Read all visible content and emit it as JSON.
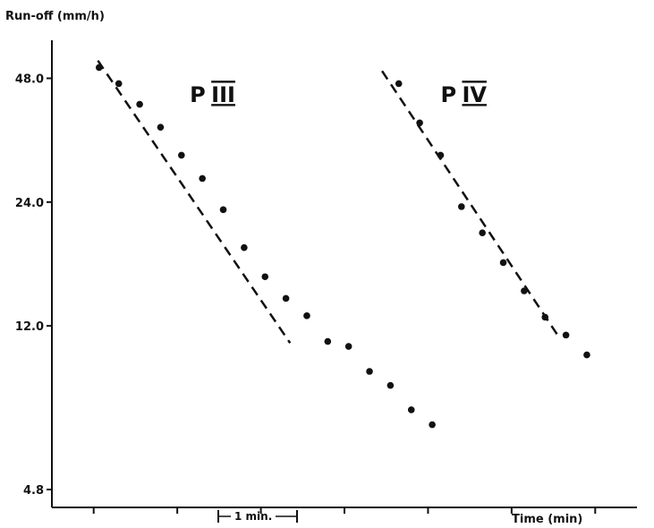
{
  "chart_data": {
    "type": "scatter",
    "title": "",
    "ylabel": "Run-off (mm/h)",
    "xlabel": "Time (min)",
    "y_scale": "log",
    "ylim": [
      4.8,
      60
    ],
    "xlim": [
      0,
      14
    ],
    "y_ticks": [
      "48.0",
      "24.0",
      "12.0",
      "4.8"
    ],
    "x_ticks": [
      1,
      3,
      5,
      7,
      9,
      11,
      13
    ],
    "scale_annotation": "1 min.",
    "series": [
      {
        "name": "P III",
        "label_left": "P",
        "label_numeral": "III",
        "points": [
          {
            "x": 1.13,
            "y": 51.0
          },
          {
            "x": 1.6,
            "y": 46.6
          },
          {
            "x": 2.1,
            "y": 41.5
          },
          {
            "x": 2.6,
            "y": 36.5
          },
          {
            "x": 3.1,
            "y": 31.2
          },
          {
            "x": 3.6,
            "y": 27.4
          },
          {
            "x": 4.1,
            "y": 23.0
          },
          {
            "x": 4.6,
            "y": 18.6
          },
          {
            "x": 5.1,
            "y": 15.8
          },
          {
            "x": 5.6,
            "y": 14.0
          },
          {
            "x": 6.1,
            "y": 12.7
          },
          {
            "x": 6.6,
            "y": 11.0
          },
          {
            "x": 7.1,
            "y": 10.7
          },
          {
            "x": 7.6,
            "y": 9.3
          },
          {
            "x": 8.1,
            "y": 8.6
          },
          {
            "x": 8.6,
            "y": 7.5
          },
          {
            "x": 9.1,
            "y": 6.9
          }
        ],
        "fit_line": [
          {
            "x": 1.1,
            "y": 53.0
          },
          {
            "x": 5.7,
            "y": 10.9
          }
        ]
      },
      {
        "name": "P IV",
        "label_left": "P",
        "label_numeral": "IV",
        "points": [
          {
            "x": 8.3,
            "y": 46.6
          },
          {
            "x": 8.8,
            "y": 37.4
          },
          {
            "x": 9.3,
            "y": 31.2
          },
          {
            "x": 9.8,
            "y": 23.4
          },
          {
            "x": 10.3,
            "y": 20.2
          },
          {
            "x": 10.8,
            "y": 17.1
          },
          {
            "x": 11.3,
            "y": 14.6
          },
          {
            "x": 11.8,
            "y": 12.6
          },
          {
            "x": 12.3,
            "y": 11.4
          },
          {
            "x": 12.8,
            "y": 10.2
          }
        ],
        "fit_line": [
          {
            "x": 7.9,
            "y": 50.0
          },
          {
            "x": 12.1,
            "y": 11.4
          }
        ]
      }
    ],
    "series_label_positions": [
      {
        "x": 3.3,
        "y": 42.0
      },
      {
        "x": 9.3,
        "y": 42.0
      }
    ]
  }
}
